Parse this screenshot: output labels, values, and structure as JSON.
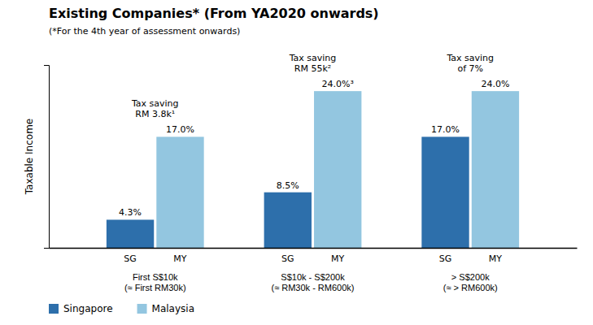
{
  "chart_data": {
    "type": "bar",
    "title": "Existing Companies* (From YA2020 onwards)",
    "subtitle": "(*For the 4th year of assessment onwards)",
    "ylabel": "Taxable Income",
    "categories": [
      "First S$10k\n(≈ First RM30k)",
      "S$10k - S$200k\n(≈ RM30k - RM600k)",
      "> S$200k\n(≈ > RM600k)"
    ],
    "series": [
      {
        "name": "Singapore",
        "short_name": "SG",
        "color": "#2D6FAB",
        "values": [
          4.3,
          8.5,
          17.0
        ],
        "value_labels": [
          "4.3%",
          "8.5%",
          "17.0%"
        ]
      },
      {
        "name": "Malaysia",
        "short_name": "MY",
        "color": "#93C6E0",
        "values": [
          17.0,
          24.0,
          24.0
        ],
        "value_labels": [
          "17.0%",
          "24.0%³",
          "24.0%"
        ]
      }
    ],
    "annotations": [
      "Tax saving\nRM 3.8k¹",
      "Tax saving\nRM 55k²",
      "Tax saving\nof 7%"
    ],
    "ylim": [
      0,
      28
    ],
    "yticks": [],
    "tick_labels": "x",
    "data_labels": true,
    "legend": "bottom",
    "grid": false
  }
}
